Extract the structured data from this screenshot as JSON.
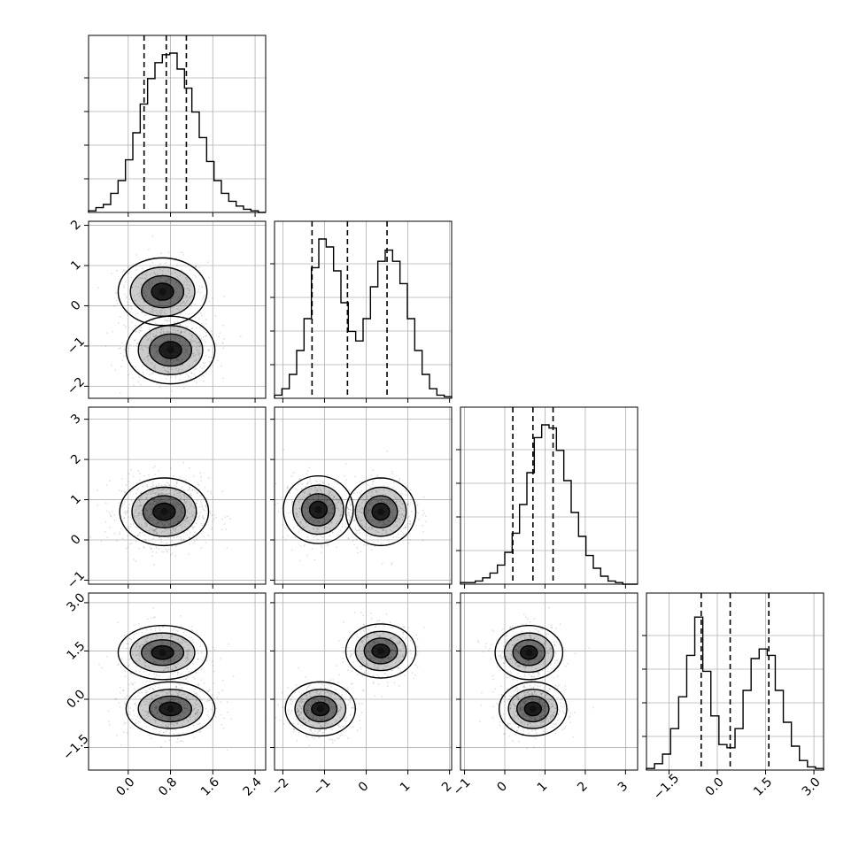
{
  "chart_data": {
    "type": "corner",
    "parameters": 4,
    "grid": true,
    "quantile_style": "dashed",
    "axes": {
      "x": [
        {
          "range": [
            -0.75,
            2.6
          ],
          "ticks": [
            0.0,
            0.8,
            1.6,
            2.4
          ],
          "tick_labels": [
            "0.0",
            "0.8",
            "1.6",
            "2.4"
          ]
        },
        {
          "range": [
            -2.2,
            2.05
          ],
          "ticks": [
            -2,
            -1,
            0,
            1,
            2
          ],
          "tick_labels": [
            "−2",
            "−1",
            "0",
            "1",
            "2"
          ]
        },
        {
          "range": [
            -1.1,
            3.3
          ],
          "ticks": [
            -1,
            0,
            1,
            2,
            3
          ],
          "tick_labels": [
            "−1",
            "0",
            "1",
            "2",
            "3"
          ]
        },
        {
          "range": [
            -2.2,
            3.3
          ],
          "ticks": [
            -1.5,
            0.0,
            1.5,
            3.0
          ],
          "tick_labels": [
            "−1.5",
            "0.0",
            "1.5",
            "3.0"
          ]
        }
      ],
      "y": [
        null,
        {
          "range": [
            -2.3,
            2.1
          ],
          "ticks": [
            -2,
            -1,
            0,
            1,
            2
          ],
          "tick_labels": [
            "−2",
            "−1",
            "0",
            "1",
            "2"
          ]
        },
        {
          "range": [
            -1.1,
            3.3
          ],
          "ticks": [
            -1,
            0,
            1,
            2,
            3
          ],
          "tick_labels": [
            "−1",
            "0",
            "1",
            "2",
            "3"
          ]
        },
        {
          "range": [
            -2.2,
            3.3
          ],
          "ticks": [
            -1.5,
            0.0,
            1.5,
            3.0
          ],
          "tick_labels": [
            "−1.5",
            "0.0",
            "1.5",
            "3.0"
          ]
        }
      ]
    },
    "histograms": [
      {
        "bin_edges": [
          -0.75,
          2.6
        ],
        "counts": [
          0.01,
          0.03,
          0.05,
          0.12,
          0.2,
          0.33,
          0.5,
          0.68,
          0.84,
          0.94,
          0.99,
          1.0,
          0.9,
          0.78,
          0.63,
          0.47,
          0.32,
          0.2,
          0.12,
          0.07,
          0.04,
          0.02,
          0.01,
          0.0
        ],
        "quantiles": [
          0.3,
          0.72,
          1.1
        ]
      },
      {
        "bin_edges": [
          -2.2,
          2.05
        ],
        "counts": [
          0.02,
          0.06,
          0.15,
          0.3,
          0.5,
          0.82,
          1.0,
          0.95,
          0.8,
          0.6,
          0.42,
          0.36,
          0.5,
          0.7,
          0.86,
          0.93,
          0.86,
          0.72,
          0.5,
          0.3,
          0.15,
          0.06,
          0.02,
          0.01
        ],
        "quantiles": [
          -1.3,
          -0.45,
          0.5
        ]
      },
      {
        "bin_edges": [
          -1.1,
          3.3
        ],
        "counts": [
          0.01,
          0.01,
          0.02,
          0.04,
          0.07,
          0.12,
          0.2,
          0.32,
          0.5,
          0.7,
          0.92,
          1.0,
          0.98,
          0.84,
          0.65,
          0.45,
          0.3,
          0.18,
          0.1,
          0.05,
          0.02,
          0.01,
          0.0,
          0.0
        ],
        "quantiles": [
          0.2,
          0.7,
          1.2
        ]
      },
      {
        "bin_edges": [
          -2.2,
          3.3
        ],
        "counts": [
          0.01,
          0.04,
          0.1,
          0.26,
          0.46,
          0.72,
          0.96,
          0.62,
          0.34,
          0.16,
          0.14,
          0.26,
          0.5,
          0.7,
          0.76,
          0.72,
          0.5,
          0.3,
          0.15,
          0.06,
          0.02,
          0.01
        ],
        "quantiles": [
          -0.5,
          0.4,
          1.6
        ]
      }
    ],
    "pairs": [
      {
        "row": 1,
        "col": 0,
        "modes": [
          {
            "x": 0.65,
            "y": 0.35,
            "w": 0.42
          },
          {
            "x": 0.8,
            "y": -1.1,
            "w": 0.58
          }
        ]
      },
      {
        "row": 2,
        "col": 0,
        "modes": [
          {
            "x": 0.68,
            "y": 0.7,
            "w": 1.0
          }
        ]
      },
      {
        "row": 2,
        "col": 1,
        "modes": [
          {
            "x": -1.15,
            "y": 0.75,
            "w": 0.52
          },
          {
            "x": 0.35,
            "y": 0.7,
            "w": 0.48
          }
        ]
      },
      {
        "row": 3,
        "col": 0,
        "modes": [
          {
            "x": 0.65,
            "y": 1.45,
            "w": 0.4
          },
          {
            "x": 0.8,
            "y": -0.3,
            "w": 0.6
          }
        ]
      },
      {
        "row": 3,
        "col": 1,
        "modes": [
          {
            "x": -1.1,
            "y": -0.3,
            "w": 0.55
          },
          {
            "x": 0.35,
            "y": 1.5,
            "w": 0.45
          }
        ]
      },
      {
        "row": 3,
        "col": 2,
        "modes": [
          {
            "x": 0.6,
            "y": 1.45,
            "w": 0.42
          },
          {
            "x": 0.7,
            "y": -0.3,
            "w": 0.58
          }
        ]
      }
    ]
  }
}
